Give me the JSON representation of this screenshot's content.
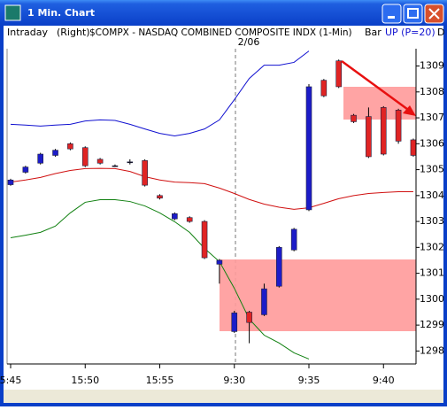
{
  "window_title": "1 Min. Chart",
  "header": {
    "mode": "Intraday",
    "axis_side": "(Right)",
    "symbol": "$COMPX - NASDAQ COMBINED COMPOSITE INDX (1-Min)",
    "style": "Bar",
    "indicator": "UP (P=20)",
    "extra": "D"
  },
  "session_label": "2/06",
  "chart_data": {
    "type": "candlestick",
    "categories": [
      "5:45",
      null,
      null,
      null,
      null,
      "15:50",
      null,
      null,
      null,
      null,
      "15:55",
      null,
      null,
      null,
      null,
      "9:30",
      null,
      null,
      null,
      null,
      "9:35",
      null,
      null,
      null,
      null,
      "9:40",
      null,
      null
    ],
    "open": [
      1304.42,
      1304.9,
      1305.25,
      1305.55,
      1306.0,
      1305.85,
      1305.4,
      1305.15,
      1305.3,
      1305.35,
      1304.0,
      1303.1,
      1303.15,
      1303.0,
      1301.35,
      1298.75,
      1299.5,
      1299.4,
      1300.5,
      1301.9,
      1303.45,
      1308.45,
      1309.2,
      1307.1,
      1307.05,
      1307.4,
      1307.3,
      1306.15
    ],
    "high": [
      1304.65,
      1305.15,
      1305.65,
      1305.8,
      1306.05,
      1305.9,
      1305.45,
      1305.2,
      1305.4,
      1305.4,
      1304.05,
      1303.35,
      1303.2,
      1303.05,
      1301.55,
      1299.55,
      1299.55,
      1300.6,
      1302.05,
      1302.75,
      1308.3,
      1308.5,
      1309.25,
      1307.15,
      1307.4,
      1307.45,
      1307.35,
      1306.2
    ],
    "low": [
      1304.38,
      1304.85,
      1305.2,
      1305.5,
      1305.75,
      1305.1,
      1305.2,
      1305.1,
      1305.2,
      1304.35,
      1303.85,
      1303.05,
      1302.95,
      1301.55,
      1300.6,
      1298.7,
      1298.3,
      1299.35,
      1300.45,
      1301.85,
      1303.4,
      1307.8,
      1308.15,
      1306.8,
      1305.45,
      1305.55,
      1306.0,
      1305.5
    ],
    "close": [
      1304.6,
      1305.1,
      1305.6,
      1305.75,
      1305.8,
      1305.15,
      1305.25,
      1305.15,
      1305.3,
      1304.4,
      1303.9,
      1303.3,
      1303.0,
      1301.6,
      1301.5,
      1299.47,
      1299.1,
      1300.4,
      1302.0,
      1302.7,
      1308.2,
      1307.85,
      1308.2,
      1306.85,
      1305.5,
      1305.6,
      1306.1,
      1305.55
    ],
    "up_color": "#1c1cc8",
    "down_color": "#e02424",
    "bands": [
      {
        "color": "#1010d0",
        "values": [
          1306.75,
          1306.72,
          1306.68,
          1306.72,
          1306.75,
          1306.88,
          1306.92,
          1306.9,
          1306.75,
          1306.57,
          1306.4,
          1306.3,
          1306.4,
          1306.57,
          1306.92,
          1307.7,
          1308.52,
          1309.03,
          1309.03,
          1309.14,
          1309.58,
          null,
          null,
          null,
          null,
          null,
          null,
          null
        ]
      },
      {
        "color": "#d01010",
        "values": [
          1304.52,
          1304.6,
          1304.7,
          1304.85,
          1304.97,
          1305.04,
          1305.05,
          1305.04,
          1304.93,
          1304.73,
          1304.6,
          1304.52,
          1304.5,
          1304.46,
          1304.29,
          1304.08,
          1303.85,
          1303.67,
          1303.55,
          1303.47,
          1303.53,
          1303.7,
          1303.88,
          1304.0,
          1304.08,
          1304.12,
          1304.15,
          1304.15
        ]
      },
      {
        "color": "#108010",
        "values": [
          1302.37,
          1302.47,
          1302.58,
          1302.82,
          1303.33,
          1303.74,
          1303.84,
          1303.84,
          1303.77,
          1303.6,
          1303.33,
          1302.99,
          1302.58,
          1301.96,
          1301.45,
          1300.42,
          1299.23,
          1298.61,
          1298.31,
          1297.93,
          1297.69,
          null,
          null,
          null,
          null,
          null,
          null,
          null
        ]
      }
    ],
    "ylim": [
      1297.5,
      1309.6
    ],
    "yticks": [
      1298,
      1299,
      1300,
      1301,
      1302,
      1303,
      1304,
      1305,
      1306,
      1307,
      1308,
      1309
    ]
  }
}
